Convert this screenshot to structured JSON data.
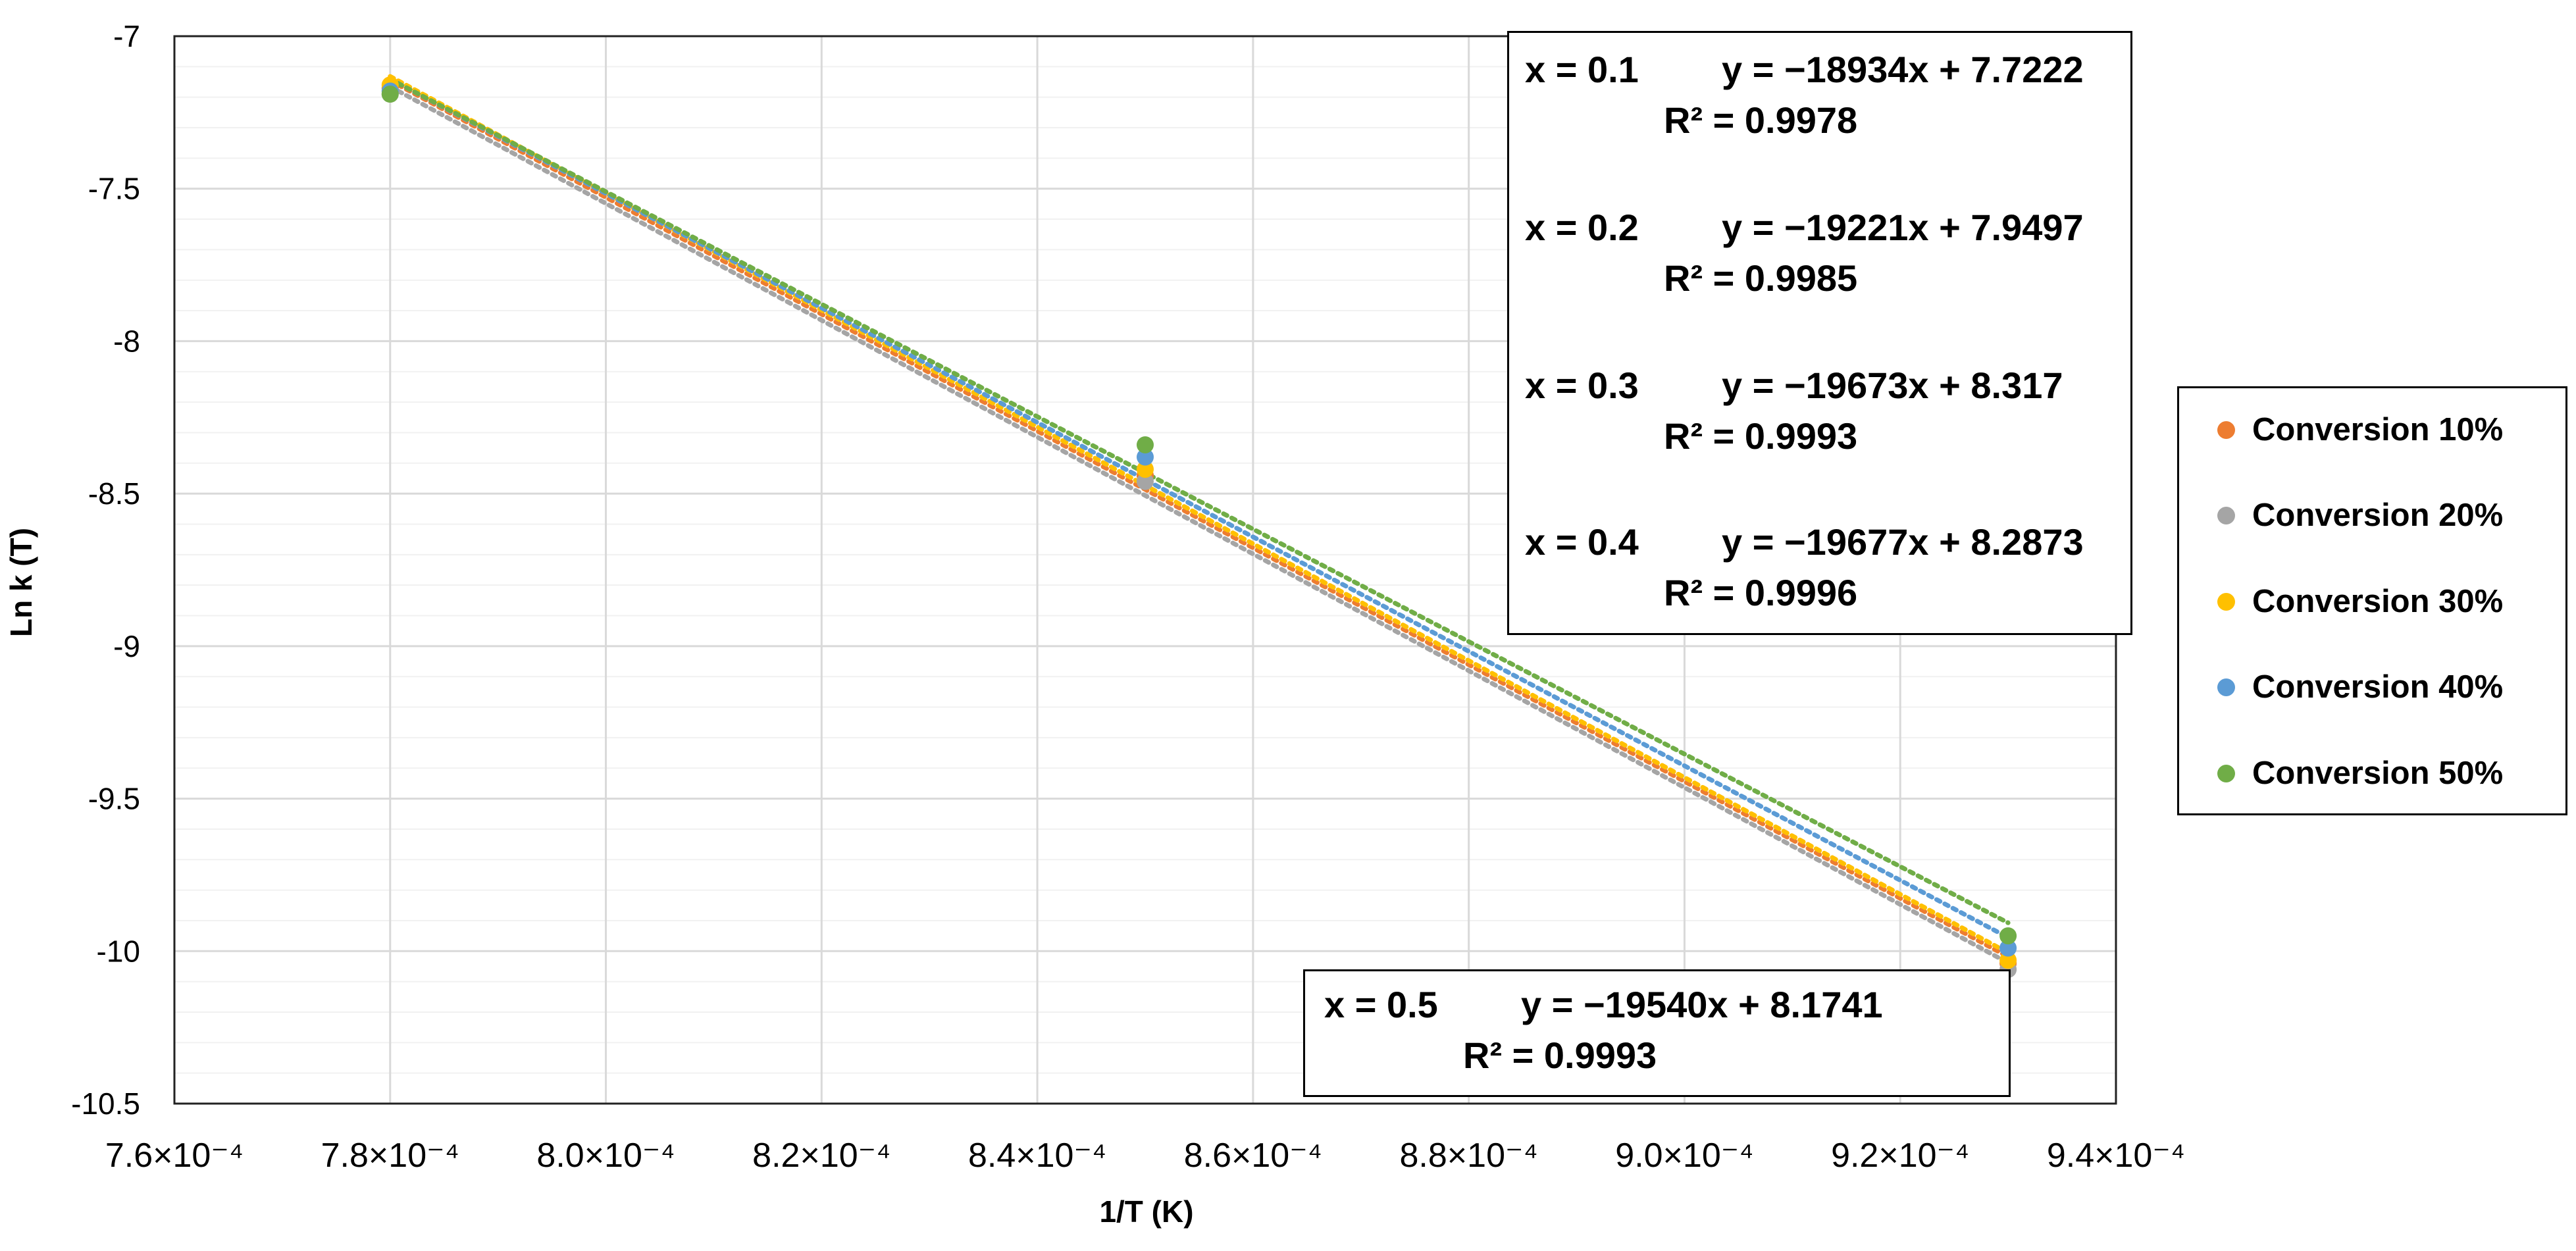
{
  "chart_data": {
    "type": "scatter",
    "title": "",
    "xlabel": "1/T (K)",
    "ylabel": "Ln k (T)",
    "xlim": [
      0.00076,
      0.00094
    ],
    "ylim": [
      -10.5,
      -7
    ],
    "x_ticks": [
      {
        "value": 0.00076,
        "label": "7.6×10⁻⁴"
      },
      {
        "value": 0.00078,
        "label": "7.8×10⁻⁴"
      },
      {
        "value": 0.0008,
        "label": "8.0×10⁻⁴"
      },
      {
        "value": 0.00082,
        "label": "8.2×10⁻⁴"
      },
      {
        "value": 0.00084,
        "label": "8.4×10⁻⁴"
      },
      {
        "value": 0.00086,
        "label": "8.6×10⁻⁴"
      },
      {
        "value": 0.00088,
        "label": "8.8×10⁻⁴"
      },
      {
        "value": 0.0009,
        "label": "9.0×10⁻⁴"
      },
      {
        "value": 0.00092,
        "label": "9.2×10⁻⁴"
      },
      {
        "value": 0.00094,
        "label": "9.4×10⁻⁴"
      }
    ],
    "y_ticks": [
      {
        "value": -7,
        "label": "-7"
      },
      {
        "value": -7.5,
        "label": "-7.5"
      },
      {
        "value": -8,
        "label": "-8"
      },
      {
        "value": -8.5,
        "label": "-8.5"
      },
      {
        "value": -9,
        "label": "-9"
      },
      {
        "value": -9.5,
        "label": "-9.5"
      },
      {
        "value": -10,
        "label": "-10"
      },
      {
        "value": -10.5,
        "label": "-10.5"
      }
    ],
    "grid": true,
    "legend_position": "right",
    "trendline_style": "dotted linear",
    "series": [
      {
        "name": "Conversion 10%",
        "color": "#ED7D31",
        "x": [
          0.00078,
          0.00085,
          0.00093
        ],
        "y": [
          -7.17,
          -8.44,
          -10.04
        ],
        "fit": {
          "slope": -18934,
          "intercept": 7.7222
        }
      },
      {
        "name": "Conversion 20%",
        "color": "#A5A5A5",
        "x": [
          0.00078,
          0.00085,
          0.00093
        ],
        "y": [
          -7.19,
          -8.46,
          -10.06
        ],
        "fit": {
          "slope": -19221,
          "intercept": 7.9497
        }
      },
      {
        "name": "Conversion 30%",
        "color": "#FFC000",
        "x": [
          0.00078,
          0.00085,
          0.00093
        ],
        "y": [
          -7.16,
          -8.42,
          -10.03
        ],
        "fit": {
          "slope": -19673,
          "intercept": 8.317
        }
      },
      {
        "name": "Conversion 40%",
        "color": "#5B9BD5",
        "x": [
          0.00078,
          0.00085,
          0.00093
        ],
        "y": [
          -7.18,
          -8.38,
          -9.99
        ],
        "fit": {
          "slope": -19677,
          "intercept": 8.2873
        }
      },
      {
        "name": "Conversion 50%",
        "color": "#70AD47",
        "x": [
          0.00078,
          0.00085,
          0.00093
        ],
        "y": [
          -7.19,
          -8.34,
          -9.95
        ],
        "fit": {
          "slope": -19540,
          "intercept": 8.1741
        }
      }
    ],
    "annotations": [
      {
        "x_label": "x = 0.1",
        "equation": "y = −18934x + 7.7222",
        "r2": "R² = 0.9978"
      },
      {
        "x_label": "x = 0.2",
        "equation": "y = −19221x + 7.9497",
        "r2": "R² = 0.9985"
      },
      {
        "x_label": "x = 0.3",
        "equation": "y = −19673x + 8.317",
        "r2": "R² = 0.9993"
      },
      {
        "x_label": "x = 0.4",
        "equation": "y = −19677x + 8.2873",
        "r2": "R² = 0.9996"
      },
      {
        "x_label": "x = 0.5",
        "equation": "y = −19540x + 8.1741",
        "r2": "R² = 0.9993"
      }
    ]
  }
}
